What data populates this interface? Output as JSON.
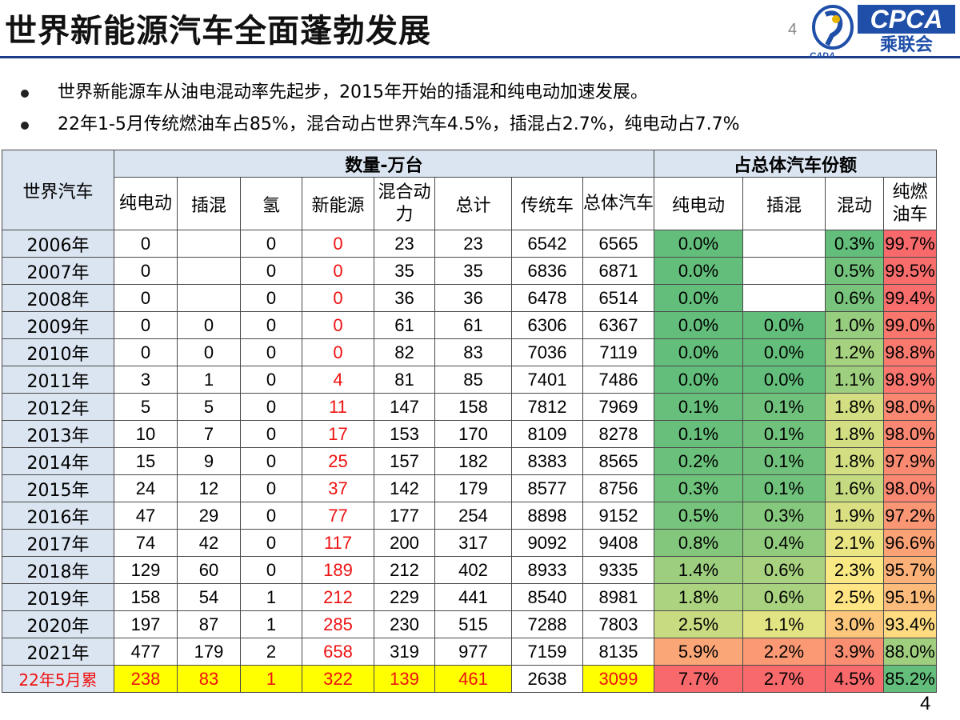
{
  "title": "世界新能源汽车全面蓬勃发展",
  "page_number_top": "4",
  "page_number_bottom": "4",
  "logo": {
    "text": "CPCA",
    "cn": "乘联会",
    "small": "CADA"
  },
  "bullets": [
    "世界新能源车从油电混动率先起步，2015年开始的插混和纯电动加速发展。",
    "22年1-5月传统燃油车占85%，混合动占世界汽车4.5%，插混占2.7%，纯电动占7.7%"
  ],
  "table": {
    "corner_label": "世界汽车",
    "group_quantity": "数量-万台",
    "group_share": "占总体汽车份额",
    "qty_headers": [
      "纯电动",
      "插混",
      "氢",
      "新能源",
      "混合动力",
      "总计",
      "传统车",
      "总体汽车"
    ],
    "share_headers": [
      "纯电动",
      "插混",
      "混动",
      "纯燃油车"
    ],
    "rows": [
      {
        "year": "2006年",
        "bev": "0",
        "phev": "",
        "h2": "0",
        "nev": "0",
        "hev": "23",
        "total": "23",
        "ice": "6542",
        "all": "6565",
        "s_bev": "0.0%",
        "s_phev": "",
        "s_hev": "0.3%",
        "s_ice": "99.7%"
      },
      {
        "year": "2007年",
        "bev": "0",
        "phev": "",
        "h2": "0",
        "nev": "0",
        "hev": "35",
        "total": "35",
        "ice": "6836",
        "all": "6871",
        "s_bev": "0.0%",
        "s_phev": "",
        "s_hev": "0.5%",
        "s_ice": "99.5%"
      },
      {
        "year": "2008年",
        "bev": "0",
        "phev": "",
        "h2": "0",
        "nev": "0",
        "hev": "36",
        "total": "36",
        "ice": "6478",
        "all": "6514",
        "s_bev": "0.0%",
        "s_phev": "",
        "s_hev": "0.6%",
        "s_ice": "99.4%"
      },
      {
        "year": "2009年",
        "bev": "0",
        "phev": "0",
        "h2": "0",
        "nev": "0",
        "hev": "61",
        "total": "61",
        "ice": "6306",
        "all": "6367",
        "s_bev": "0.0%",
        "s_phev": "0.0%",
        "s_hev": "1.0%",
        "s_ice": "99.0%"
      },
      {
        "year": "2010年",
        "bev": "0",
        "phev": "0",
        "h2": "0",
        "nev": "0",
        "hev": "82",
        "total": "83",
        "ice": "7036",
        "all": "7119",
        "s_bev": "0.0%",
        "s_phev": "0.0%",
        "s_hev": "1.2%",
        "s_ice": "98.8%"
      },
      {
        "year": "2011年",
        "bev": "3",
        "phev": "1",
        "h2": "0",
        "nev": "4",
        "hev": "81",
        "total": "85",
        "ice": "7401",
        "all": "7486",
        "s_bev": "0.0%",
        "s_phev": "0.0%",
        "s_hev": "1.1%",
        "s_ice": "98.9%"
      },
      {
        "year": "2012年",
        "bev": "5",
        "phev": "5",
        "h2": "0",
        "nev": "11",
        "hev": "147",
        "total": "158",
        "ice": "7812",
        "all": "7969",
        "s_bev": "0.1%",
        "s_phev": "0.1%",
        "s_hev": "1.8%",
        "s_ice": "98.0%"
      },
      {
        "year": "2013年",
        "bev": "10",
        "phev": "7",
        "h2": "0",
        "nev": "17",
        "hev": "153",
        "total": "170",
        "ice": "8109",
        "all": "8278",
        "s_bev": "0.1%",
        "s_phev": "0.1%",
        "s_hev": "1.8%",
        "s_ice": "98.0%"
      },
      {
        "year": "2014年",
        "bev": "15",
        "phev": "9",
        "h2": "0",
        "nev": "25",
        "hev": "157",
        "total": "182",
        "ice": "8383",
        "all": "8565",
        "s_bev": "0.2%",
        "s_phev": "0.1%",
        "s_hev": "1.8%",
        "s_ice": "97.9%"
      },
      {
        "year": "2015年",
        "bev": "24",
        "phev": "12",
        "h2": "0",
        "nev": "37",
        "hev": "142",
        "total": "179",
        "ice": "8577",
        "all": "8756",
        "s_bev": "0.3%",
        "s_phev": "0.1%",
        "s_hev": "1.6%",
        "s_ice": "98.0%"
      },
      {
        "year": "2016年",
        "bev": "47",
        "phev": "29",
        "h2": "0",
        "nev": "77",
        "hev": "177",
        "total": "254",
        "ice": "8898",
        "all": "9152",
        "s_bev": "0.5%",
        "s_phev": "0.3%",
        "s_hev": "1.9%",
        "s_ice": "97.2%"
      },
      {
        "year": "2017年",
        "bev": "74",
        "phev": "42",
        "h2": "0",
        "nev": "117",
        "hev": "200",
        "total": "317",
        "ice": "9092",
        "all": "9408",
        "s_bev": "0.8%",
        "s_phev": "0.4%",
        "s_hev": "2.1%",
        "s_ice": "96.6%"
      },
      {
        "year": "2018年",
        "bev": "129",
        "phev": "60",
        "h2": "0",
        "nev": "189",
        "hev": "212",
        "total": "402",
        "ice": "8933",
        "all": "9335",
        "s_bev": "1.4%",
        "s_phev": "0.6%",
        "s_hev": "2.3%",
        "s_ice": "95.7%"
      },
      {
        "year": "2019年",
        "bev": "158",
        "phev": "54",
        "h2": "1",
        "nev": "212",
        "hev": "229",
        "total": "441",
        "ice": "8540",
        "all": "8981",
        "s_bev": "1.8%",
        "s_phev": "0.6%",
        "s_hev": "2.5%",
        "s_ice": "95.1%"
      },
      {
        "year": "2020年",
        "bev": "197",
        "phev": "87",
        "h2": "1",
        "nev": "285",
        "hev": "230",
        "total": "515",
        "ice": "7288",
        "all": "7803",
        "s_bev": "2.5%",
        "s_phev": "1.1%",
        "s_hev": "3.0%",
        "s_ice": "93.4%"
      },
      {
        "year": "2021年",
        "bev": "477",
        "phev": "179",
        "h2": "2",
        "nev": "658",
        "hev": "319",
        "total": "977",
        "ice": "7159",
        "all": "8135",
        "s_bev": "5.9%",
        "s_phev": "2.2%",
        "s_hev": "3.9%",
        "s_ice": "88.0%"
      },
      {
        "year": "22年5月累",
        "bev": "238",
        "phev": "83",
        "h2": "1",
        "nev": "322",
        "hev": "139",
        "total": "461",
        "ice": "2638",
        "all": "3099",
        "s_bev": "7.7%",
        "s_phev": "2.7%",
        "s_hev": "4.5%",
        "s_ice": "85.2%"
      }
    ],
    "colors": {
      "green": "#63be7b",
      "yellow": "#ffeb84",
      "red": "#f8696b",
      "header_fill": "#dbe5f1",
      "highlight": "#ffff00",
      "new_energy_text": "#ee1111"
    }
  }
}
